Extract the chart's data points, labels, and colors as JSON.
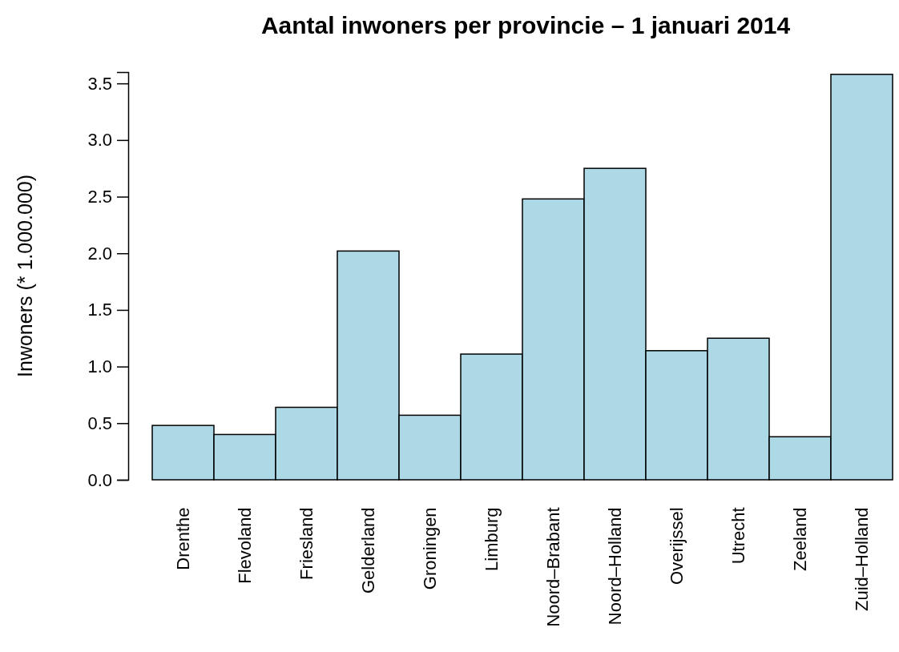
{
  "chart_data": {
    "type": "bar",
    "title": "Aantal inwoners per provincie – 1 januari 2014",
    "ylabel": "Inwoners (* 1.000.000)",
    "categories": [
      "Drenthe",
      "Flevoland",
      "Friesland",
      "Gelderland",
      "Groningen",
      "Limburg",
      "Noord–Brabant",
      "Noord–Holland",
      "Overijssel",
      "Utrecht",
      "Zeeland",
      "Zuid–Holland"
    ],
    "values": [
      0.48,
      0.4,
      0.64,
      2.02,
      0.57,
      1.11,
      2.48,
      2.75,
      1.14,
      1.25,
      0.38,
      3.58
    ],
    "color": "#add8e6",
    "ylim": [
      0,
      3.6
    ],
    "yticks": [
      {
        "value": 0,
        "label": "0.0"
      },
      {
        "value": 0.5,
        "label": "0.5"
      },
      {
        "value": 1,
        "label": "1.0"
      },
      {
        "value": 1.5,
        "label": "1.5"
      },
      {
        "value": 2,
        "label": "2.0"
      },
      {
        "value": 2.5,
        "label": "2.5"
      },
      {
        "value": 3,
        "label": "3.0"
      },
      {
        "value": 3.5,
        "label": "3.5"
      }
    ],
    "grid": false
  }
}
